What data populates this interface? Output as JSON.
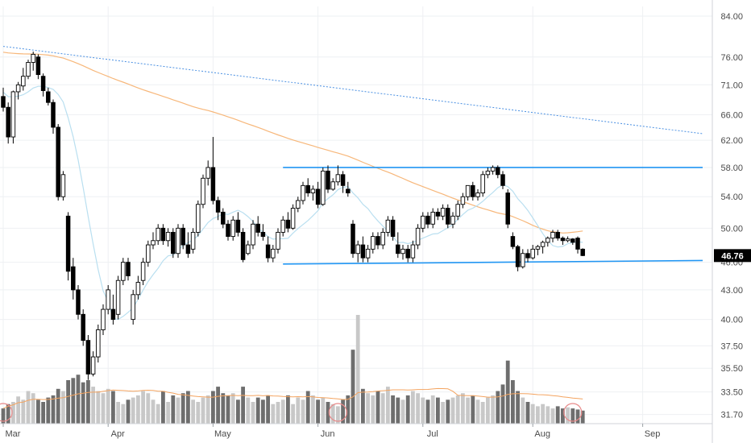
{
  "chart_data": {
    "type": "candlestick",
    "x_tick_labels": [
      "Mar",
      "Apr",
      "May",
      "Jun",
      "Jul",
      "Aug",
      "Sep"
    ],
    "y_tick_labels": [
      "84.00",
      "76.00",
      "71.00",
      "66.00",
      "62.00",
      "58.00",
      "54.00",
      "50.00",
      "46.00",
      "43.00",
      "40.00",
      "37.50",
      "35.50",
      "33.50",
      "31.70"
    ],
    "y_scale": "log",
    "y_range": [
      31.0,
      86.0
    ],
    "last_price_label": "46.76",
    "colors": {
      "up": "#ffffff",
      "down": "#000000",
      "wick": "#000000",
      "ma_slow": "#f7b77a",
      "ma_fast": "#b9dff0",
      "trend": "#4a90e2",
      "channel": "#2196f3",
      "grid": "#eef0f3",
      "axis_text": "#4a4a4a",
      "vol_up": "#c8c8c8",
      "vol_down": "#6e6e6e",
      "vol_ma": "#f4a460",
      "marker": "#e88a8a",
      "price_tag_bg": "#000000",
      "price_tag_fg": "#ffffff"
    },
    "month_index": {
      "Mar": 0,
      "Apr": 21,
      "May": 42,
      "Jun": 63,
      "Jul": 84,
      "Aug": 106,
      "Sep": 128
    },
    "candles": [
      [
        69.0,
        70.5,
        66.5,
        67.2
      ],
      [
        67.2,
        68.0,
        61.5,
        62.5
      ],
      [
        62.5,
        70.0,
        61.5,
        69.8
      ],
      [
        69.8,
        71.5,
        68.5,
        71.0
      ],
      [
        70.8,
        74.0,
        70.0,
        72.5
      ],
      [
        72.5,
        75.5,
        72.0,
        75.0
      ],
      [
        75.0,
        77.0,
        73.5,
        76.5
      ],
      [
        76.0,
        76.5,
        72.0,
        72.8
      ],
      [
        72.5,
        73.0,
        69.0,
        70.0
      ],
      [
        69.8,
        70.5,
        67.5,
        68.0
      ],
      [
        68.0,
        68.5,
        63.0,
        64.0
      ],
      [
        64.0,
        64.5,
        53.5,
        54.0
      ],
      [
        54.0,
        57.5,
        53.5,
        57.0
      ],
      [
        51.5,
        52.0,
        44.0,
        45.0
      ],
      [
        45.5,
        46.5,
        42.0,
        43.0
      ],
      [
        43.0,
        43.5,
        40.0,
        40.5
      ],
      [
        40.5,
        41.0,
        37.5,
        38.0
      ],
      [
        38.0,
        38.5,
        34.5,
        35.0
      ],
      [
        35.0,
        37.0,
        34.8,
        36.5
      ],
      [
        36.5,
        39.5,
        36.0,
        39.0
      ],
      [
        39.0,
        41.5,
        38.5,
        41.0
      ],
      [
        41.0,
        43.5,
        40.5,
        43.0
      ],
      [
        41.0,
        42.5,
        39.5,
        40.0
      ],
      [
        40.5,
        44.5,
        40.0,
        44.0
      ],
      [
        44.0,
        46.5,
        43.5,
        46.0
      ],
      [
        46.0,
        46.5,
        44.0,
        44.5
      ],
      [
        40.0,
        43.0,
        39.5,
        42.5
      ],
      [
        42.5,
        44.5,
        42.0,
        43.8
      ],
      [
        44.0,
        46.5,
        43.5,
        46.0
      ],
      [
        46.0,
        48.5,
        45.5,
        48.0
      ],
      [
        48.0,
        49.5,
        47.5,
        48.5
      ],
      [
        48.5,
        50.5,
        48.0,
        50.0
      ],
      [
        50.0,
        50.5,
        48.0,
        48.5
      ],
      [
        48.5,
        50.0,
        47.8,
        49.5
      ],
      [
        49.5,
        50.0,
        46.5,
        47.0
      ],
      [
        47.0,
        50.5,
        46.5,
        50.0
      ],
      [
        50.0,
        50.5,
        47.5,
        48.0
      ],
      [
        48.0,
        49.5,
        46.5,
        47.0
      ],
      [
        47.5,
        50.0,
        47.0,
        49.5
      ],
      [
        49.5,
        53.5,
        49.0,
        53.0
      ],
      [
        53.0,
        57.0,
        52.5,
        56.5
      ],
      [
        56.5,
        59.0,
        55.5,
        58.0
      ],
      [
        58.0,
        62.5,
        53.0,
        53.5
      ],
      [
        53.5,
        54.0,
        51.0,
        52.0
      ],
      [
        52.0,
        52.5,
        50.0,
        50.5
      ],
      [
        50.5,
        51.0,
        48.5,
        49.0
      ],
      [
        49.0,
        51.5,
        48.5,
        51.0
      ],
      [
        51.0,
        52.0,
        49.0,
        49.5
      ],
      [
        49.5,
        50.0,
        46.0,
        46.3
      ],
      [
        47.0,
        48.5,
        46.8,
        48.0
      ],
      [
        48.0,
        51.0,
        47.5,
        50.5
      ],
      [
        50.5,
        51.5,
        49.0,
        49.5
      ],
      [
        49.5,
        50.5,
        48.5,
        49.0
      ],
      [
        48.0,
        49.0,
        46.0,
        46.5
      ],
      [
        46.5,
        48.0,
        46.0,
        47.5
      ],
      [
        47.5,
        50.0,
        47.0,
        49.5
      ],
      [
        49.5,
        51.5,
        49.0,
        51.0
      ],
      [
        51.0,
        52.0,
        49.5,
        50.0
      ],
      [
        50.0,
        53.0,
        49.8,
        52.5
      ],
      [
        52.5,
        54.0,
        52.0,
        53.5
      ],
      [
        53.5,
        56.0,
        53.0,
        55.5
      ],
      [
        55.5,
        56.5,
        54.0,
        54.5
      ],
      [
        54.5,
        55.5,
        53.5,
        55.0
      ],
      [
        55.0,
        56.0,
        52.5,
        53.0
      ],
      [
        53.0,
        58.0,
        52.8,
        57.5
      ],
      [
        57.5,
        58.3,
        54.5,
        55.0
      ],
      [
        55.0,
        56.5,
        54.8,
        56.0
      ],
      [
        56.0,
        58.3,
        55.5,
        57.0
      ],
      [
        57.0,
        57.5,
        54.5,
        55.5
      ],
      [
        55.0,
        56.0,
        54.0,
        54.5
      ],
      [
        50.5,
        51.0,
        46.5,
        47.0
      ],
      [
        47.0,
        48.5,
        46.0,
        48.0
      ],
      [
        48.0,
        49.0,
        46.0,
        46.5
      ],
      [
        46.5,
        48.0,
        46.0,
        47.5
      ],
      [
        47.5,
        49.5,
        47.0,
        49.0
      ],
      [
        49.0,
        49.5,
        47.5,
        48.0
      ],
      [
        48.0,
        50.0,
        47.5,
        49.5
      ],
      [
        49.5,
        51.5,
        49.0,
        51.0
      ],
      [
        51.0,
        51.5,
        48.5,
        49.0
      ],
      [
        48.0,
        49.5,
        46.5,
        47.0
      ],
      [
        47.0,
        48.0,
        46.3,
        47.5
      ],
      [
        47.5,
        48.0,
        46.0,
        46.5
      ],
      [
        46.5,
        48.5,
        46.0,
        48.0
      ],
      [
        48.0,
        50.5,
        47.5,
        50.0
      ],
      [
        50.0,
        52.0,
        49.5,
        51.5
      ],
      [
        51.5,
        52.0,
        50.0,
        50.5
      ],
      [
        50.5,
        52.5,
        50.0,
        52.0
      ],
      [
        52.0,
        52.5,
        51.0,
        51.5
      ],
      [
        51.5,
        53.0,
        51.0,
        52.5
      ],
      [
        52.5,
        53.0,
        50.0,
        50.5
      ],
      [
        50.5,
        52.0,
        50.0,
        51.5
      ],
      [
        51.5,
        53.5,
        51.0,
        53.0
      ],
      [
        53.0,
        54.5,
        52.5,
        54.0
      ],
      [
        54.0,
        55.5,
        53.5,
        55.5
      ],
      [
        55.5,
        56.0,
        53.5,
        54.0
      ],
      [
        54.0,
        55.0,
        53.5,
        54.5
      ],
      [
        54.5,
        57.5,
        54.0,
        57.0
      ],
      [
        57.0,
        58.0,
        56.5,
        57.5
      ],
      [
        57.5,
        58.3,
        57.0,
        58.0
      ],
      [
        58.0,
        58.3,
        56.5,
        57.0
      ],
      [
        57.0,
        57.5,
        55.0,
        55.5
      ],
      [
        54.5,
        55.0,
        50.0,
        50.5
      ],
      [
        49.0,
        49.5,
        47.5,
        47.8
      ],
      [
        47.8,
        48.0,
        45.0,
        45.5
      ],
      [
        45.5,
        47.5,
        45.3,
        47.0
      ],
      [
        47.0,
        47.5,
        46.0,
        46.5
      ],
      [
        46.5,
        48.0,
        46.3,
        47.5
      ],
      [
        47.5,
        48.0,
        46.8,
        47.8
      ],
      [
        47.8,
        48.5,
        47.0,
        48.3
      ],
      [
        48.3,
        49.0,
        47.8,
        48.8
      ],
      [
        48.8,
        49.8,
        48.3,
        49.5
      ],
      [
        49.5,
        49.8,
        48.5,
        48.8
      ],
      [
        48.8,
        49.0,
        48.0,
        48.5
      ],
      [
        48.5,
        49.0,
        48.3,
        48.7
      ],
      [
        48.7,
        48.8,
        48.0,
        48.3
      ],
      [
        48.8,
        49.0,
        47.0,
        47.5
      ],
      [
        47.5,
        47.6,
        46.7,
        46.76
      ]
    ],
    "volumes": [
      0.14,
      0.18,
      0.2,
      0.25,
      0.22,
      0.3,
      0.28,
      0.22,
      0.2,
      0.24,
      0.26,
      0.32,
      0.3,
      0.4,
      0.42,
      0.45,
      0.38,
      0.4,
      0.34,
      0.3,
      0.28,
      0.32,
      0.3,
      0.2,
      0.18,
      0.22,
      0.24,
      0.26,
      0.3,
      0.28,
      0.22,
      0.18,
      0.3,
      0.2,
      0.26,
      0.24,
      0.28,
      0.3,
      0.22,
      0.2,
      0.24,
      0.26,
      0.3,
      0.34,
      0.28,
      0.26,
      0.28,
      0.22,
      0.34,
      0.24,
      0.2,
      0.24,
      0.22,
      0.26,
      0.18,
      0.2,
      0.22,
      0.26,
      0.18,
      0.24,
      0.22,
      0.3,
      0.26,
      0.22,
      0.24,
      0.2,
      0.18,
      0.16,
      0.22,
      0.26,
      0.68,
      1.0,
      0.32,
      0.28,
      0.26,
      0.3,
      0.28,
      0.34,
      0.26,
      0.24,
      0.22,
      0.26,
      0.3,
      0.28,
      0.24,
      0.22,
      0.26,
      0.24,
      0.2,
      0.22,
      0.24,
      0.26,
      0.28,
      0.24,
      0.26,
      0.22,
      0.2,
      0.24,
      0.26,
      0.3,
      0.36,
      0.58,
      0.4,
      0.3,
      0.24,
      0.2,
      0.18,
      0.16,
      0.18,
      0.16,
      0.14,
      0.16,
      0.14,
      0.15,
      0.14,
      0.13,
      0.12
    ],
    "volume_markers_index": [
      0,
      67,
      114
    ],
    "channel_upper": {
      "i_start": 56,
      "price_start": 58.0,
      "i_end": 140,
      "price_end": 58.0
    },
    "channel_lower": {
      "i_start": 56,
      "price_start": 45.8,
      "i_end": 140,
      "price_end": 46.2
    },
    "trendline": {
      "i_start": 0,
      "price_start": 78.0,
      "i_end": 140,
      "price_end": 63.0
    }
  }
}
